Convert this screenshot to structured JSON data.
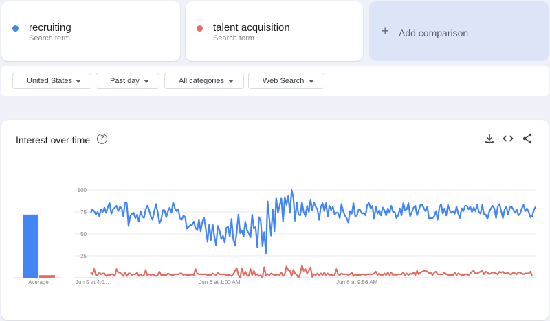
{
  "terms": [
    {
      "name": "recruiting",
      "sub": "Search term",
      "color": "#4285f4"
    },
    {
      "name": "talent acquisition",
      "sub": "Search term",
      "color": "#db4437"
    }
  ],
  "add_comparison": {
    "plus": "+",
    "label": "Add comparison"
  },
  "filters": [
    {
      "label": "United States"
    },
    {
      "label": "Past day"
    },
    {
      "label": "All categories"
    },
    {
      "label": "Web Search"
    }
  ],
  "panel": {
    "title": "Interest over time",
    "help": "?"
  },
  "icons": {
    "help": "help-circle-icon",
    "download": "download-icon",
    "embed": "code-icon",
    "share": "share-icon"
  },
  "chart_data": {
    "type": "line",
    "ylim": [
      0,
      100
    ],
    "y_ticks": [
      25,
      50,
      75,
      100
    ],
    "x_tick_labels": [
      "Jun 5 at 4:0...",
      "Jun 6 at 1:00 AM",
      "Jun 6 at 9:56 AM"
    ],
    "x_tick_index": [
      0,
      75,
      155
    ],
    "average": {
      "label": "Average",
      "values": [
        72,
        3
      ]
    },
    "series": [
      {
        "name": "recruiting",
        "color": "#4285f4",
        "values": [
          74,
          78,
          76,
          72,
          75,
          70,
          78,
          75,
          80,
          74,
          81,
          85,
          73,
          78,
          80,
          82,
          76,
          81,
          79,
          70,
          86,
          85,
          59,
          70,
          73,
          74,
          68,
          72,
          64,
          76,
          70,
          68,
          78,
          82,
          77,
          70,
          66,
          76,
          84,
          75,
          62,
          66,
          77,
          77,
          69,
          76,
          80,
          74,
          86,
          79,
          76,
          78,
          67,
          66,
          71,
          69,
          56,
          58,
          60,
          60,
          64,
          57,
          54,
          66,
          53,
          64,
          68,
          56,
          41,
          61,
          43,
          61,
          47,
          37,
          59,
          54,
          44,
          48,
          40,
          57,
          58,
          47,
          67,
          44,
          37,
          52,
          72,
          51,
          54,
          47,
          64,
          54,
          51,
          46,
          72,
          56,
          58,
          35,
          69,
          65,
          36,
          52,
          28,
          87,
          67,
          48,
          78,
          53,
          91,
          74,
          82,
          91,
          64,
          92,
          83,
          93,
          74,
          100,
          91,
          65,
          86,
          72,
          71,
          86,
          75,
          70,
          82,
          75,
          89,
          77,
          86,
          81,
          78,
          66,
          81,
          85,
          76,
          85,
          70,
          82,
          77,
          81,
          72,
          74,
          74,
          68,
          84,
          76,
          71,
          68,
          63,
          76,
          73,
          85,
          70,
          71,
          78,
          77,
          73,
          74,
          71,
          83,
          85,
          79,
          82,
          67,
          81,
          73,
          77,
          71,
          80,
          77,
          71,
          79,
          74,
          82,
          75,
          75,
          68,
          71,
          79,
          71,
          85,
          77,
          78,
          85,
          70,
          75,
          80,
          82,
          71,
          77,
          83,
          83,
          79,
          76,
          81,
          67,
          68,
          68,
          70,
          76,
          66,
          80,
          84,
          73,
          79,
          71,
          83,
          77,
          74,
          76,
          73,
          81,
          73,
          68,
          79,
          76,
          82,
          82,
          78,
          81,
          75,
          80,
          76,
          83,
          75,
          73,
          83,
          72,
          72,
          67,
          75,
          79,
          82,
          79,
          68,
          81,
          84,
          76,
          68,
          78,
          81,
          72,
          80,
          81,
          78,
          74,
          78,
          71,
          73,
          79,
          83,
          76,
          79,
          75,
          69,
          70,
          77,
          81
        ]
      },
      {
        "name": "talent acquisition",
        "color": "#db4437",
        "values": [
          6,
          4,
          10,
          3,
          3,
          6,
          4,
          5,
          5,
          2,
          3,
          3,
          4,
          4,
          2,
          10,
          6,
          6,
          4,
          2,
          6,
          2,
          5,
          5,
          3,
          4,
          4,
          6,
          2,
          4,
          2,
          3,
          9,
          3,
          4,
          3,
          4,
          3,
          2,
          3,
          7,
          3,
          3,
          3,
          3,
          5,
          4,
          3,
          3,
          4,
          4,
          4,
          5,
          5,
          3,
          4,
          3,
          3,
          3,
          4,
          3,
          10,
          5,
          4,
          4,
          4,
          4,
          4,
          3,
          3,
          3,
          5,
          4,
          3,
          6,
          4,
          4,
          4,
          4,
          3,
          3,
          3,
          2,
          4,
          8,
          11,
          3,
          0,
          11,
          3,
          7,
          3,
          2,
          10,
          3,
          8,
          3,
          4,
          2,
          3,
          0,
          12,
          3,
          4,
          3,
          5,
          4,
          3,
          3,
          4,
          3,
          6,
          2,
          4,
          13,
          9,
          8,
          2,
          9,
          5,
          3,
          0,
          5,
          14,
          8,
          10,
          5,
          8,
          12,
          1,
          4,
          3,
          5,
          3,
          5,
          3,
          6,
          3,
          5,
          3,
          4,
          2,
          3,
          10,
          4,
          3,
          5,
          4,
          4,
          4,
          3,
          4,
          6,
          2,
          4,
          3,
          3,
          3,
          4,
          4,
          3,
          4,
          4,
          4,
          4,
          5,
          7,
          3,
          5,
          3,
          3,
          5,
          3,
          6,
          3,
          6,
          3,
          4,
          3,
          4,
          4,
          4,
          6,
          3,
          5,
          3,
          5,
          4,
          6,
          3,
          8,
          4,
          6,
          7,
          8,
          8,
          7,
          5,
          6,
          3,
          6,
          7,
          4,
          4,
          4,
          4,
          6,
          4,
          3,
          3,
          3,
          3,
          6,
          3,
          5,
          4,
          3,
          3,
          4,
          4,
          3,
          5,
          7,
          8,
          5,
          5,
          6,
          7,
          8,
          4,
          7,
          6,
          4,
          5,
          6,
          6,
          5,
          4,
          7,
          6,
          7,
          5,
          5,
          6,
          4,
          4,
          6,
          5,
          4,
          6,
          6,
          5,
          4,
          5,
          5,
          5,
          7,
          2
        ]
      }
    ]
  }
}
